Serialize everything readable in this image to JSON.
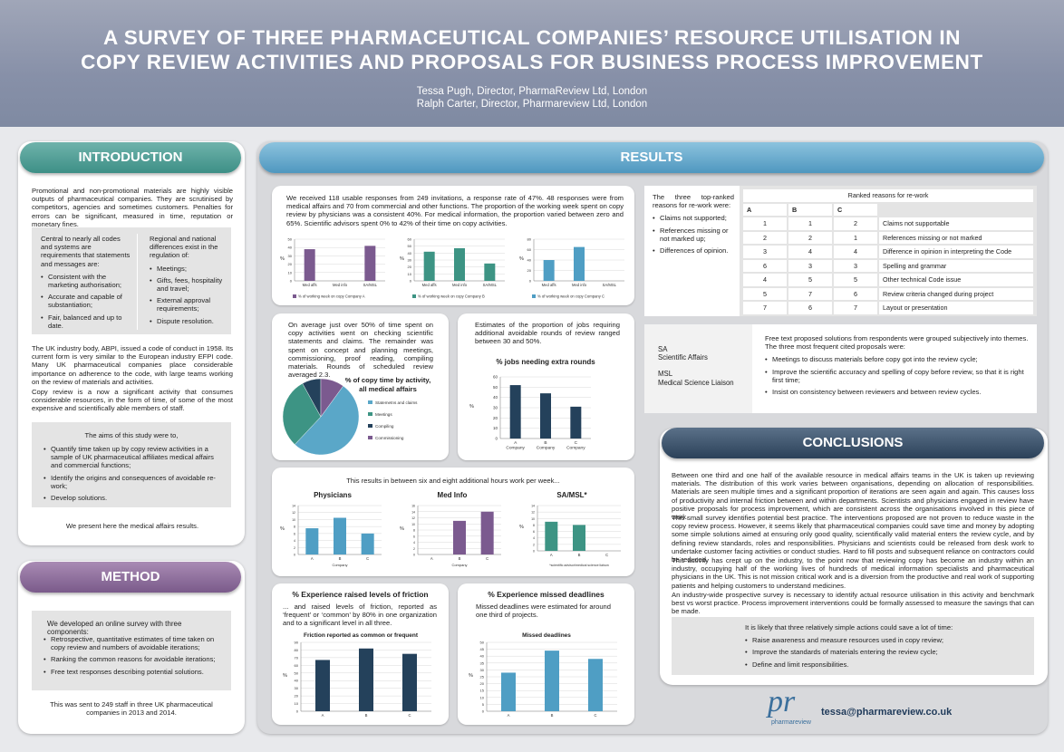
{
  "header": {
    "title_line1": "A SURVEY OF THREE PHARMACEUTICAL COMPANIES’ RESOURCE UTILISATION IN",
    "title_line2": "COPY REVIEW ACTIVITIES AND PROPOSALS FOR BUSINESS PROCESS IMPROVEMENT",
    "author1": "Tessa Pugh, Director, PharmaReview Ltd, London",
    "author2": "Ralph Carter, Director, Pharmareview Ltd, London"
  },
  "intro": {
    "title": "INTRODUCTION",
    "p1": "Promotional and non-promotional materials are highly visible outputs of pharmaceutical companies. They are scrutinised by competitors, agencies and sometimes customers. Penalties for errors can be significant, measured in time, reputation or monetary fines.",
    "left_head": "Central to nearly all codes and systems are requirements that statements and messages are:",
    "left_items": [
      "Consistent with the marketing authorisation;",
      "Accurate and capable of substantiation;",
      "Fair, balanced and up to date."
    ],
    "right_head": "Regional and national differences exist in the regulation of:",
    "right_items": [
      "Meetings;",
      "Gifts, fees, hospitality and travel;",
      "External approval requirements;",
      "Dispute resolution."
    ],
    "p2": "The UK industry body, ABPI, issued a code of conduct in 1958. Its current form is very similar to the European industry EFPI code. Many UK pharmaceutical companies place considerable importance on adherence to the code, with large teams working on the review of materials and activities.",
    "p3": "Copy review is a now a significant activity that consumes considerable resources, in the form of time, of some of the most expensive and scientifically able members of staff.",
    "aims_head": "The aims of this study were to,",
    "aims": [
      "Quantify time taken up by copy review activities in a sample of UK pharmaceutical affiliates medical affairs and commercial functions;",
      "Identify the origins and consequences of avoidable re-work;",
      "Develop solutions."
    ],
    "closing": "We present here the medical affairs results."
  },
  "method": {
    "title": "METHOD",
    "head": "We developed an online survey with three components:",
    "items": [
      "Retrospective, quantitative estimates of time taken on copy review and numbers of avoidable iterations;",
      "Ranking the common reasons for avoidable iterations;",
      "Free text responses describing potential solutions."
    ],
    "closing": "This was sent to 249 staff in three UK pharmaceutical companies in 2013 and 2014."
  },
  "results": {
    "title": "RESULTS",
    "p1": "We received 118 usable responses from 249 invitations, a response rate of 47%. 48 responses were from medical affairs and 70 from commercial and other functions. The proportion of the working week spent on copy review by physicians was a consistent 40%. For medical information, the proportion varied between zero and 65%. Scientific advisors spent 0% to 42% of their time on copy activities.",
    "pie_text": "On average just over 50% of time spent on copy activities went on checking scientific statements and claims. The remainder was spent on concept and planning meetings, commissioning, proof reading, compiling materials. Rounds of scheduled review averaged 2.3.",
    "jobs_text": "Estimates of the proportion of jobs requiring additional avoidable rounds of review ranged between 30 and 50%.",
    "extra_text": "This results in between six and eight additional hours work per week...",
    "friction_head": "% Experience raised levels of friction",
    "friction_text": "... and raised levels of friction, reported as ‘frequent’ or ‘common’ by 80% in one organization and to a significant level in all three.",
    "missed_head": "% Experience missed deadlines",
    "missed_text": "Missed deadlines were estimated for around one third of projects.",
    "top_ranked_head": "The three top-ranked reasons for re-work were:",
    "top_ranked": [
      "Claims not supported;",
      "References missing or not marked up;",
      "Differences of opinion."
    ],
    "table_title": "Ranked reasons for re-work",
    "table_cols": [
      "A",
      "B",
      "C"
    ],
    "table_rows": [
      {
        "a": "1",
        "b": "1",
        "c": "2",
        "reason": "Claims not supportable"
      },
      {
        "a": "2",
        "b": "2",
        "c": "1",
        "reason": "References missing or not marked"
      },
      {
        "a": "3",
        "b": "4",
        "c": "4",
        "reason": "Difference in opinion in interpreting the Code"
      },
      {
        "a": "6",
        "b": "3",
        "c": "3",
        "reason": "Spelling and grammar"
      },
      {
        "a": "4",
        "b": "5",
        "c": "5",
        "reason": "Other technical Code issue"
      },
      {
        "a": "5",
        "b": "7",
        "c": "6",
        "reason": "Review criteria changed during project"
      },
      {
        "a": "7",
        "b": "6",
        "c": "7",
        "reason": "Layout or presentation"
      }
    ],
    "abbr_sa": "SA",
    "abbr_sa_full": "Scientific Affairs",
    "abbr_msl": "MSL",
    "abbr_msl_full": "Medical Science Liaison",
    "free_head": "Free text proposed solutions from respondents were grouped subjectively into themes. The three most frequent cited proposals were:",
    "free_items": [
      "Meetings to discuss materials before copy got into the review cycle;",
      "Improve the scientific accuracy and spelling of copy before review, so that it is right first time;",
      "Insist on consistency between reviewers and between review cycles."
    ]
  },
  "conclusions": {
    "title": "CONCLUSIONS",
    "p1": "Between one third and one half of the available resource in medical affairs teams in the UK is taken up reviewing materials. The distribution of this work varies between organisations, depending on allocation of responsibilities. Materials are seen multiple times and a significant proportion of iterations are seen again and again. This causes loss of productivity and internal friction between and within departments. Scientists and physicians engaged in review have positive proposals for process improvement, which are consistent across the organisations involved in this piece of work.",
    "p2": "This small survey identifies potential best practice. The interventions proposed are not proven to reduce waste in the copy review process. However, it seems likely that pharmaceutical companies could save time and money by adopting some simple solutions aimed at ensuring only good quality, scientifically valid material enters the review cycle, and by defining review standards, roles and responsibilities. Physicians and scientists could be released from desk work to undertake customer facing activities or conduct studies. Hard to fill posts and subsequent reliance on contractors could be reduced.",
    "p3": "This activity has crept up on the industry, to the point now that reviewing copy has become an industry within an industry, occupying half of the working lives of hundreds of medical information specialists and pharmaceutical physicians in the UK. This is not mission critical work and is a diversion from the productive and real work of supporting patients and helping customers to understand medicines.",
    "p4": "An industry-wide prospective survey is necessary to identify actual resource utilisation in this activity and benchmark best vs worst practice. Process improvement interventions could be formally assessed to measure the savings that can be made.",
    "box_head": "It is likely that three relatively simple actions could save a lot of time:",
    "box_items": [
      "Raise awareness and measure resources used in copy review;",
      "Improve the standards of materials entering the review cycle;",
      "Define and limit responsibilities."
    ]
  },
  "footer": {
    "logo_mark": "pr",
    "logo_text": "pharmareview",
    "email": "tessa@pharmareview.co.uk"
  },
  "colors": {
    "teal": "#3d8f86",
    "purple": "#7a5a8a",
    "blue": "#4f97bf",
    "navy": "#2b4159",
    "bar_purple": "#7b5a8f",
    "bar_teal": "#3d9484",
    "bar_blue": "#4f9ec4",
    "bar_navy": "#24415b"
  },
  "chart_data": [
    {
      "id": "company_a",
      "type": "bar",
      "categories": [
        "Med affs",
        "Med info",
        "SA/MSL"
      ],
      "values": [
        38,
        0,
        42
      ],
      "ylim": [
        0,
        50
      ],
      "yticks": [
        0,
        10,
        20,
        30,
        40,
        50
      ],
      "ylabel": "%",
      "legend": "% of working week on copy Company A",
      "color": "#7b5a8f"
    },
    {
      "id": "company_b",
      "type": "bar",
      "categories": [
        "Med affs",
        "Med info",
        "SA/MSL"
      ],
      "values": [
        42,
        47,
        25
      ],
      "ylim": [
        0,
        60
      ],
      "yticks": [
        0,
        10,
        20,
        30,
        40,
        50,
        60
      ],
      "ylabel": "%",
      "legend": "% of working week on copy Company B",
      "color": "#3d9484"
    },
    {
      "id": "company_c",
      "type": "bar",
      "categories": [
        "Med affs",
        "Med info",
        "SA/MSL"
      ],
      "values": [
        40,
        65,
        0
      ],
      "ylim": [
        0,
        80
      ],
      "yticks": [
        0,
        20,
        40,
        60,
        80
      ],
      "ylabel": "%",
      "legend": "% of working week on copy Company C",
      "color": "#4f9ec4"
    },
    {
      "id": "pie",
      "type": "pie",
      "title": "% of copy time by activity, all medical affairs",
      "labels": [
        "Statemetns and claims",
        "Meetings",
        "Compiling",
        "Commissioning"
      ],
      "values": [
        52,
        30,
        8,
        10
      ],
      "colors": [
        "#5aa7c8",
        "#3d9484",
        "#24415b",
        "#7b5a8f"
      ]
    },
    {
      "id": "jobs",
      "type": "bar",
      "title": "% jobs needing extra rounds",
      "categories": [
        "A Company",
        "B Company",
        "C Company"
      ],
      "values": [
        52,
        44,
        31
      ],
      "ylim": [
        0,
        60
      ],
      "yticks": [
        0,
        10,
        20,
        30,
        40,
        50,
        60
      ],
      "ylabel": "%",
      "color": "#24415b"
    },
    {
      "id": "physicians",
      "type": "bar",
      "title": "Physicians",
      "categories": [
        "A",
        "B",
        "C"
      ],
      "values": [
        7.5,
        10.5,
        6
      ],
      "ylim": [
        0,
        14
      ],
      "yticks": [
        0,
        2,
        4,
        6,
        8,
        10,
        12,
        14
      ],
      "ylabel": "%",
      "xlabel": "Company",
      "color": "#4f9ec4"
    },
    {
      "id": "medinfo",
      "type": "bar",
      "title": "Med Info",
      "categories": [
        "A",
        "B",
        "C"
      ],
      "values": [
        0,
        11,
        14
      ],
      "ylim": [
        0,
        16
      ],
      "yticks": [
        0,
        2,
        4,
        6,
        8,
        10,
        12,
        14,
        16
      ],
      "ylabel": "%",
      "xlabel": "Company",
      "color": "#7b5a8f"
    },
    {
      "id": "samsl",
      "type": "bar",
      "title": "SA/MSL*",
      "categories": [
        "A",
        "B",
        "C"
      ],
      "values": [
        9,
        8,
        0
      ],
      "ylim": [
        0,
        14
      ],
      "yticks": [
        0,
        2,
        4,
        6,
        8,
        10,
        12,
        14
      ],
      "ylabel": "%",
      "footnote": "*scientific advisor/medical science liaison",
      "color": "#3d9484"
    },
    {
      "id": "friction",
      "type": "bar",
      "title": "Friction reported as common or frequent",
      "categories": [
        "A",
        "B",
        "C"
      ],
      "values": [
        67,
        82,
        75
      ],
      "ylim": [
        0,
        90
      ],
      "yticks": [
        0,
        10,
        20,
        30,
        40,
        50,
        60,
        70,
        80,
        90
      ],
      "ylabel": "%",
      "color": "#24415b"
    },
    {
      "id": "missed",
      "type": "bar",
      "title": "Missed deadlines",
      "categories": [
        "A",
        "B",
        "C"
      ],
      "values": [
        28,
        44,
        38
      ],
      "ylim": [
        0,
        50
      ],
      "yticks": [
        0,
        5,
        10,
        15,
        20,
        25,
        30,
        35,
        40,
        45,
        50
      ],
      "ylabel": "%",
      "color": "#4f9ec4"
    }
  ]
}
